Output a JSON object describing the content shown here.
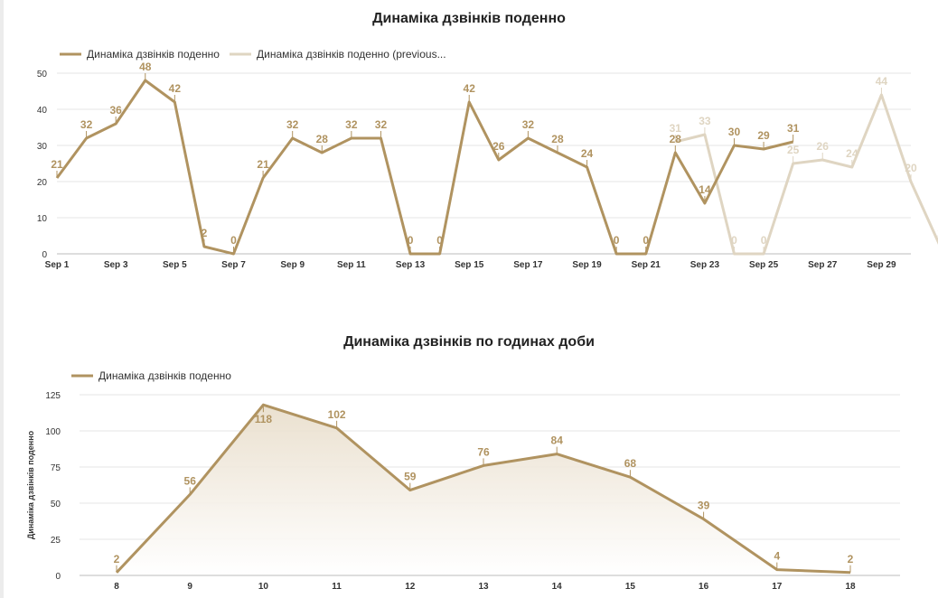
{
  "chart_data": [
    {
      "type": "line",
      "title": "Динаміка дзвінків поденно",
      "xlabel": "",
      "ylabel": "",
      "ylim": [
        0,
        50
      ],
      "yticks": [
        0,
        10,
        20,
        30,
        40,
        50
      ],
      "x_tick_labels": [
        "Sep 1",
        "Sep 3",
        "Sep 5",
        "Sep 7",
        "Sep 9",
        "Sep 11",
        "Sep 13",
        "Sep 15",
        "Sep 17",
        "Sep 19",
        "Sep 21",
        "Sep 23",
        "Sep 25",
        "Sep 27",
        "Sep 29"
      ],
      "legend_position": "top-left",
      "grid": true,
      "series": [
        {
          "name": "Динаміка дзвінків поденно",
          "color": "#b09360",
          "x": [
            1,
            2,
            3,
            4,
            5,
            6,
            7,
            8,
            9,
            10,
            11,
            12,
            13,
            14,
            15,
            16,
            17,
            18,
            19,
            20,
            21,
            22,
            23,
            24,
            25,
            26
          ],
          "values": [
            21,
            32,
            36,
            48,
            42,
            2,
            0,
            21,
            32,
            28,
            32,
            32,
            0,
            0,
            42,
            26,
            32,
            28,
            24,
            0,
            0,
            28,
            14,
            30,
            29,
            31
          ]
        },
        {
          "name": "Динаміка дзвінків поденно (previous...",
          "color": "#dfd5c2",
          "x": [
            22,
            23,
            24,
            25,
            26,
            27,
            28,
            29,
            30,
            31
          ],
          "values": [
            31,
            33,
            0,
            0,
            25,
            26,
            24,
            44,
            20,
            2
          ]
        }
      ]
    },
    {
      "type": "area",
      "title": "Динаміка дзвінків по годинах доби",
      "xlabel": "",
      "ylabel": "Динаміка дзвінків поденно",
      "ylim": [
        0,
        125
      ],
      "yticks": [
        0,
        25,
        50,
        75,
        100,
        125
      ],
      "legend_position": "top-left",
      "grid": true,
      "categories": [
        "8",
        "9",
        "10",
        "11",
        "12",
        "13",
        "14",
        "15",
        "16",
        "17",
        "18"
      ],
      "series": [
        {
          "name": "Динаміка дзвінків поденно",
          "color": "#b09360",
          "values": [
            2,
            56,
            118,
            102,
            59,
            76,
            84,
            68,
            39,
            4,
            2
          ]
        }
      ]
    }
  ]
}
